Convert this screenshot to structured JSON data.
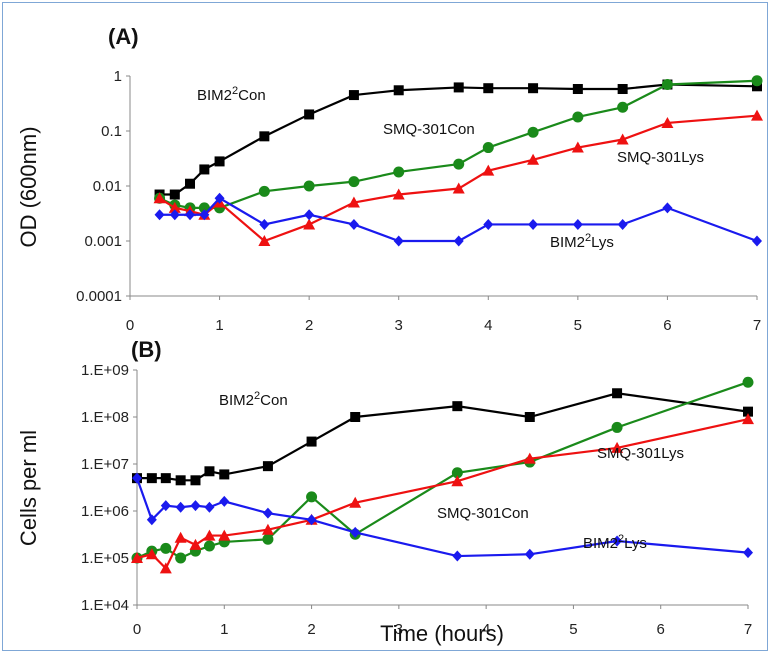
{
  "chart_data": [
    {
      "type": "line",
      "panel_label": "(A)",
      "ylabel": "OD (600nm)",
      "xlabel": "",
      "yscale": "log",
      "xlim": [
        0,
        7
      ],
      "ylim": [
        0.0001,
        1
      ],
      "xticks": [
        "0",
        "1",
        "2",
        "3",
        "4",
        "5",
        "6",
        "7"
      ],
      "yticks": [
        "0.0001",
        "0.001",
        "0.01",
        "0.1",
        "1"
      ],
      "grid": false,
      "series": [
        {
          "name": "BIM2²Con",
          "color": "#000000",
          "marker": "square",
          "x": [
            0.33,
            0.5,
            0.67,
            0.83,
            1.0,
            1.5,
            2.0,
            2.5,
            3.0,
            3.67,
            4.0,
            4.5,
            5.0,
            5.5,
            6.0,
            7.0
          ],
          "y": [
            0.007,
            0.007,
            0.011,
            0.02,
            0.028,
            0.08,
            0.2,
            0.45,
            0.55,
            0.62,
            0.6,
            0.6,
            0.58,
            0.58,
            0.7,
            0.65
          ]
        },
        {
          "name": "SMQ-301Con",
          "color": "#1a8a1a",
          "marker": "circle",
          "x": [
            0.33,
            0.5,
            0.67,
            0.83,
            1.0,
            1.5,
            2.0,
            2.5,
            3.0,
            3.67,
            4.0,
            4.5,
            5.0,
            5.5,
            6.0,
            7.0
          ],
          "y": [
            0.006,
            0.0045,
            0.004,
            0.004,
            0.004,
            0.008,
            0.01,
            0.012,
            0.018,
            0.025,
            0.05,
            0.095,
            0.18,
            0.27,
            0.7,
            0.82
          ]
        },
        {
          "name": "SMQ-301Lys",
          "color": "#ee1111",
          "marker": "triangle",
          "x": [
            0.33,
            0.5,
            0.67,
            0.83,
            1.0,
            1.5,
            2.0,
            2.5,
            3.0,
            3.67,
            4.0,
            4.5,
            5.0,
            5.5,
            6.0,
            7.0
          ],
          "y": [
            0.006,
            0.004,
            0.0035,
            0.003,
            0.005,
            0.001,
            0.002,
            0.005,
            0.007,
            0.009,
            0.019,
            0.03,
            0.05,
            0.07,
            0.14,
            0.19
          ]
        },
        {
          "name": "BIM2²Lys",
          "color": "#1a1aee",
          "marker": "diamond",
          "x": [
            0.33,
            0.5,
            0.67,
            0.83,
            1.0,
            1.5,
            2.0,
            2.5,
            3.0,
            3.67,
            4.0,
            4.5,
            5.0,
            5.5,
            6.0,
            7.0
          ],
          "y": [
            0.003,
            0.003,
            0.003,
            0.003,
            0.006,
            0.002,
            0.003,
            0.002,
            0.001,
            0.001,
            0.002,
            0.002,
            0.002,
            0.002,
            0.004,
            0.001
          ]
        }
      ],
      "annotations": [
        {
          "base": "BIM2",
          "sup": "2",
          "rest": "Con"
        },
        {
          "base": "SMQ-301Con",
          "sup": "",
          "rest": ""
        },
        {
          "base": "SMQ-301Lys",
          "sup": "",
          "rest": ""
        },
        {
          "base": "BIM2",
          "sup": "2",
          "rest": "Lys"
        }
      ]
    },
    {
      "type": "line",
      "panel_label": "(B)",
      "ylabel": "Cells per ml",
      "xlabel": "Time (hours)",
      "yscale": "log",
      "xlim": [
        0,
        7
      ],
      "ylim": [
        10000,
        1000000000
      ],
      "xticks": [
        "0",
        "1",
        "2",
        "3",
        "4",
        "5",
        "6",
        "7"
      ],
      "yticks": [
        "1.E+04",
        "1.E+05",
        "1.E+06",
        "1.E+07",
        "1.E+08",
        "1.E+09"
      ],
      "grid": false,
      "series": [
        {
          "name": "BIM2²Con",
          "color": "#000000",
          "marker": "square",
          "x": [
            0,
            0.17,
            0.33,
            0.5,
            0.67,
            0.83,
            1.0,
            1.5,
            2.0,
            2.5,
            3.67,
            4.5,
            5.5,
            7.0
          ],
          "y": [
            5000000,
            5000000,
            5000000,
            4500000,
            4500000,
            7000000,
            6000000,
            9000000,
            30000000,
            100000000,
            170000000,
            100000000,
            320000000,
            130000000
          ]
        },
        {
          "name": "SMQ-301Con",
          "color": "#1a8a1a",
          "marker": "circle",
          "x": [
            0,
            0.17,
            0.33,
            0.5,
            0.67,
            0.83,
            1.0,
            1.5,
            2.0,
            2.5,
            3.67,
            4.5,
            5.5,
            7.0
          ],
          "y": [
            100000,
            140000,
            160000,
            100000,
            140000,
            180000,
            220000,
            250000,
            2000000,
            320000,
            6500000,
            11000000,
            60000000,
            550000000
          ]
        },
        {
          "name": "SMQ-301Lys",
          "color": "#ee1111",
          "marker": "triangle",
          "x": [
            0,
            0.17,
            0.33,
            0.5,
            0.67,
            0.83,
            1.0,
            1.5,
            2.0,
            2.5,
            3.67,
            4.5,
            5.5,
            7.0
          ],
          "y": [
            100000,
            120000,
            60000,
            270000,
            190000,
            300000,
            300000,
            400000,
            650000,
            1500000,
            4300000,
            13000000,
            22000000,
            90000000
          ]
        },
        {
          "name": "BIM2²Lys",
          "color": "#1a1aee",
          "marker": "diamond",
          "x": [
            0,
            0.17,
            0.33,
            0.5,
            0.67,
            0.83,
            1.0,
            1.5,
            2.0,
            2.5,
            3.67,
            4.5,
            5.5,
            7.0
          ],
          "y": [
            5000000,
            650000,
            1300000,
            1200000,
            1300000,
            1200000,
            1600000,
            900000,
            650000,
            350000,
            110000,
            120000,
            230000,
            130000
          ]
        }
      ],
      "annotations": [
        {
          "base": "BIM2",
          "sup": "2",
          "rest": "Con"
        },
        {
          "base": "SMQ-301Con",
          "sup": "",
          "rest": ""
        },
        {
          "base": "SMQ-301Lys",
          "sup": "",
          "rest": ""
        },
        {
          "base": "BIM2",
          "sup": "2",
          "rest": "Lys"
        }
      ]
    }
  ]
}
